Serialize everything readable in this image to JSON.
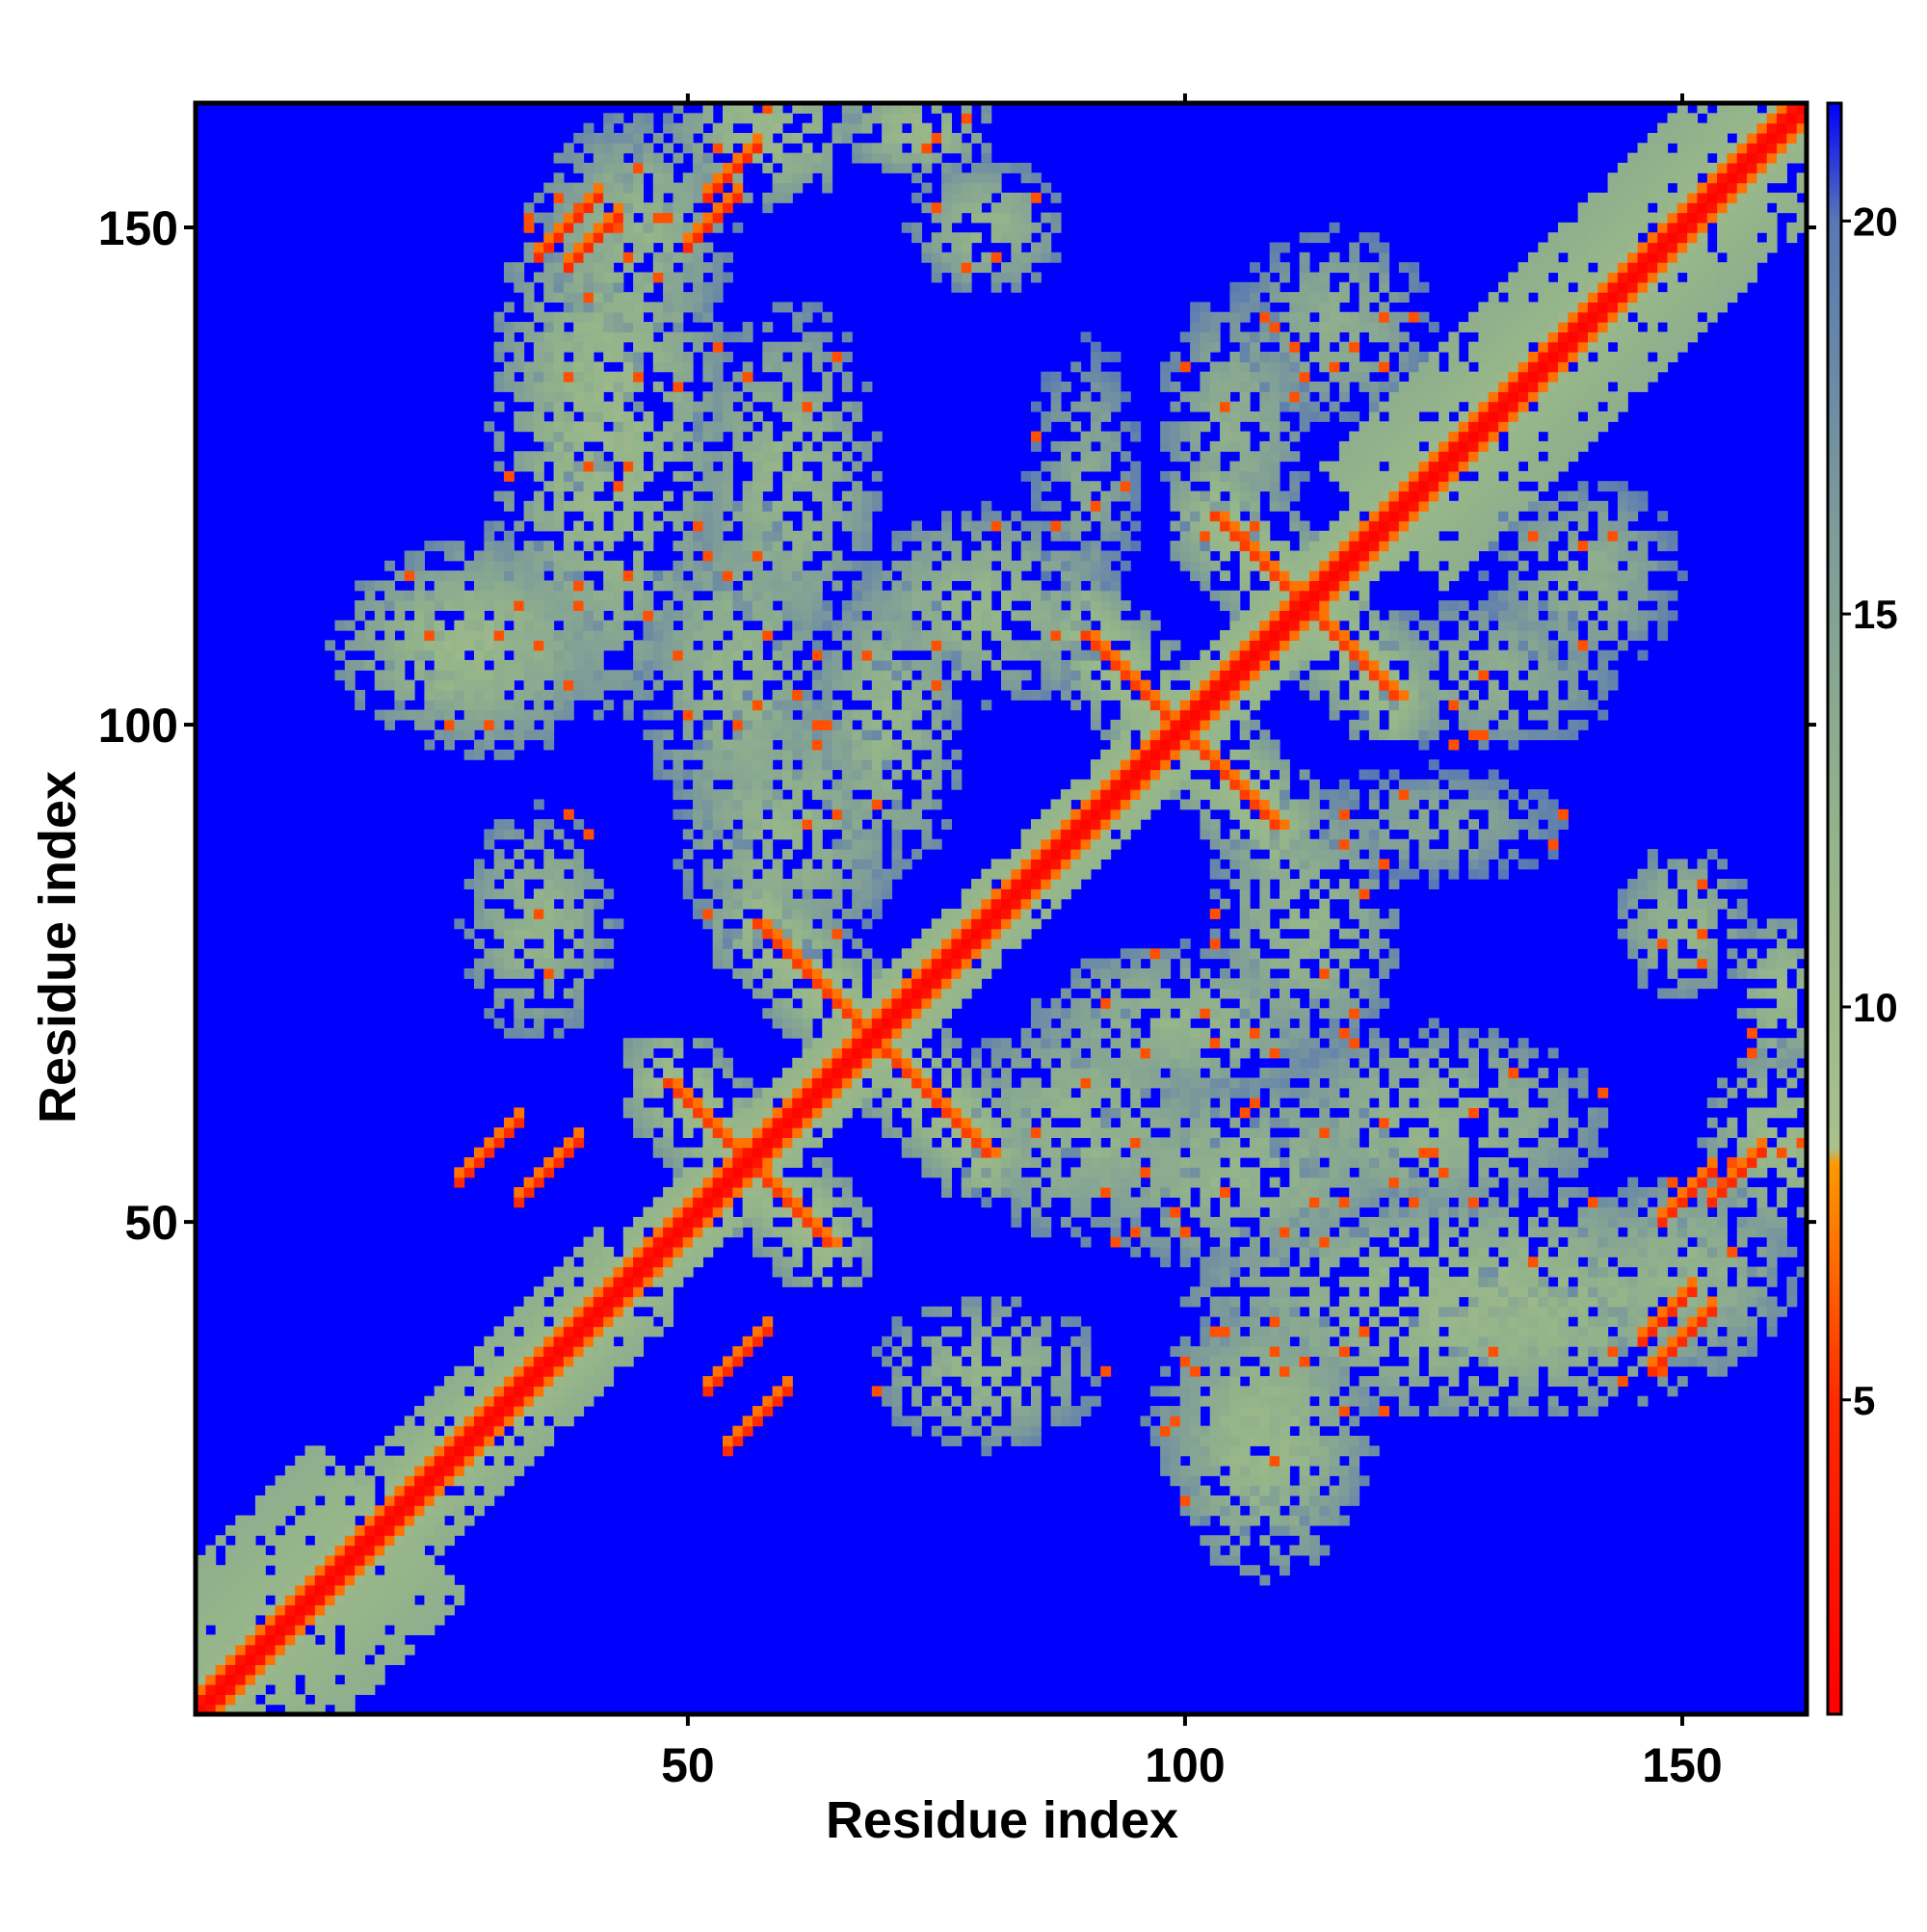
{
  "chart_data": {
    "type": "heatmap",
    "title": "",
    "xlabel": "Residue index",
    "ylabel": "Residue index",
    "xlim": [
      0.5,
      162.5
    ],
    "ylim": [
      0.5,
      162.5
    ],
    "n_residues": 162,
    "x_ticks": [
      50,
      100,
      150
    ],
    "y_ticks": [
      50,
      100,
      150
    ],
    "x_tick_labels": [
      "50",
      "100",
      "150"
    ],
    "y_tick_labels": [
      "50",
      "100",
      "150"
    ],
    "colorbar": {
      "range": [
        1,
        21.5
      ],
      "ticks": [
        5,
        10,
        15,
        20
      ],
      "tick_labels": [
        "5",
        "10",
        "15",
        "20"
      ],
      "stops": [
        {
          "value": 1,
          "color": "#ff0000"
        },
        {
          "value": 5,
          "color": "#ff2a00"
        },
        {
          "value": 8,
          "color": "#ff9900"
        },
        {
          "value": 8.2,
          "color": "#a9c08c"
        },
        {
          "value": 12,
          "color": "#94b48a"
        },
        {
          "value": 16,
          "color": "#7e9c98"
        },
        {
          "value": 20,
          "color": "#5878b4"
        },
        {
          "value": 21.5,
          "color": "#0000ff"
        }
      ]
    },
    "background_value": 21.5,
    "background_color": "#0000ff",
    "features": {
      "diagonal": [
        {
          "from": 1,
          "to": 162,
          "width": 1.6,
          "value": 1.5
        },
        {
          "from": 1,
          "to": 162,
          "width": 2.8,
          "value": 5.5
        },
        {
          "from": 1,
          "to": 162,
          "width": 5,
          "value": 10
        }
      ],
      "bands": [
        {
          "from": 1,
          "to": 20,
          "width": 15,
          "value": 11
        },
        {
          "from": 120,
          "to": 162,
          "width": 12,
          "value": 11
        },
        {
          "from": 20,
          "to": 45,
          "width": 8,
          "value": 11
        }
      ],
      "antidiagonal_contacts": [
        {
          "center": [
            64,
            73
          ],
          "length": 14,
          "value": 5.5
        },
        {
          "center": [
            73,
            64
          ],
          "length": 14,
          "value": 5.5
        },
        {
          "center": [
            95,
            104
          ],
          "length": 10,
          "value": 5.5
        },
        {
          "center": [
            104,
            95
          ],
          "length": 10,
          "value": 5.5
        },
        {
          "center": [
            108,
            116
          ],
          "length": 10,
          "value": 5.5
        },
        {
          "center": [
            116,
            108
          ],
          "length": 10,
          "value": 5.5
        },
        {
          "center": [
            52,
            60
          ],
          "length": 8,
          "value": 5.5
        },
        {
          "center": [
            60,
            52
          ],
          "length": 8,
          "value": 5.5
        }
      ],
      "parallel_contacts": [
        {
          "center": [
            38,
            150
          ],
          "length": 6,
          "value": 5
        },
        {
          "center": [
            150,
            38
          ],
          "length": 6,
          "value": 5
        },
        {
          "center": [
            54,
            155
          ],
          "length": 5,
          "value": 5
        },
        {
          "center": [
            155,
            54
          ],
          "length": 5,
          "value": 5
        },
        {
          "center": [
            30,
            57
          ],
          "length": 6,
          "value": 5
        },
        {
          "center": [
            57,
            30
          ],
          "length": 6,
          "value": 5
        },
        {
          "center": [
            55,
            36
          ],
          "length": 6,
          "value": 5
        },
        {
          "center": [
            36,
            55
          ],
          "length": 6,
          "value": 5
        },
        {
          "center": [
            150,
            52
          ],
          "length": 5,
          "value": 5
        },
        {
          "center": [
            52,
            150
          ],
          "length": 5,
          "value": 5
        },
        {
          "center": [
            148,
            40
          ],
          "length": 5,
          "value": 5
        },
        {
          "center": [
            40,
            148
          ],
          "length": 5,
          "value": 5
        }
      ],
      "contact_clouds": [
        {
          "center": [
            42,
            130
          ],
          "radius": [
            12,
            30
          ],
          "value": 12
        },
        {
          "center": [
            130,
            42
          ],
          "radius": [
            30,
            12
          ],
          "value": 12
        },
        {
          "center": [
            28,
            108
          ],
          "radius": [
            14,
            10
          ],
          "value": 12
        },
        {
          "center": [
            108,
            28
          ],
          "radius": [
            10,
            14
          ],
          "value": 12
        },
        {
          "center": [
            58,
            160
          ],
          "radius": [
            10,
            8
          ],
          "value": 12
        },
        {
          "center": [
            160,
            58
          ],
          "radius": [
            8,
            10
          ],
          "value": 12
        },
        {
          "center": [
            73,
            160
          ],
          "radius": [
            8,
            5
          ],
          "value": 12
        },
        {
          "center": [
            160,
            73
          ],
          "radius": [
            5,
            8
          ],
          "value": 12
        },
        {
          "center": [
            55,
            105
          ],
          "radius": [
            10,
            18
          ],
          "value": 13
        },
        {
          "center": [
            105,
            55
          ],
          "radius": [
            18,
            10
          ],
          "value": 13
        },
        {
          "center": [
            35,
            80
          ],
          "radius": [
            8,
            12
          ],
          "value": 13
        },
        {
          "center": [
            80,
            35
          ],
          "radius": [
            12,
            8
          ],
          "value": 13
        },
        {
          "center": [
            70,
            100
          ],
          "radius": [
            8,
            16
          ],
          "value": 13
        },
        {
          "center": [
            100,
            70
          ],
          "radius": [
            16,
            8
          ],
          "value": 13
        },
        {
          "center": [
            90,
            60
          ],
          "radius": [
            14,
            12
          ],
          "value": 13
        },
        {
          "center": [
            60,
            90
          ],
          "radius": [
            12,
            14
          ],
          "value": 13
        },
        {
          "center": [
            112,
            80
          ],
          "radius": [
            10,
            14
          ],
          "value": 13
        },
        {
          "center": [
            80,
            112
          ],
          "radius": [
            14,
            10
          ],
          "value": 13
        },
        {
          "center": [
            108,
            30
          ],
          "radius": [
            12,
            12
          ],
          "value": 13
        },
        {
          "center": [
            30,
            108
          ],
          "radius": [
            12,
            12
          ],
          "value": 13
        },
        {
          "center": [
            125,
            60
          ],
          "radius": [
            18,
            10
          ],
          "value": 13
        },
        {
          "center": [
            60,
            125
          ],
          "radius": [
            10,
            18
          ],
          "value": 13
        },
        {
          "center": [
            150,
            80
          ],
          "radius": [
            7,
            8
          ],
          "value": 13
        },
        {
          "center": [
            80,
            150
          ],
          "radius": [
            8,
            7
          ],
          "value": 13
        },
        {
          "center": [
            105,
            130
          ],
          "radius": [
            8,
            14
          ],
          "value": 14
        },
        {
          "center": [
            130,
            105
          ],
          "radius": [
            14,
            8
          ],
          "value": 14
        },
        {
          "center": [
            140,
            115
          ],
          "radius": [
            10,
            10
          ],
          "value": 14
        },
        {
          "center": [
            115,
            140
          ],
          "radius": [
            10,
            10
          ],
          "value": 14
        },
        {
          "center": [
            90,
            125
          ],
          "radius": [
            6,
            14
          ],
          "value": 15
        },
        {
          "center": [
            125,
            90
          ],
          "radius": [
            14,
            6
          ],
          "value": 15
        },
        {
          "center": [
            150,
            45
          ],
          "radius": [
            12,
            10
          ],
          "value": 13
        },
        {
          "center": [
            45,
            150
          ],
          "radius": [
            10,
            12
          ],
          "value": 13
        },
        {
          "center": [
            135,
            40
          ],
          "radius": [
            12,
            6
          ],
          "value": 13
        },
        {
          "center": [
            40,
            135
          ],
          "radius": [
            6,
            12
          ],
          "value": 13
        }
      ]
    }
  }
}
